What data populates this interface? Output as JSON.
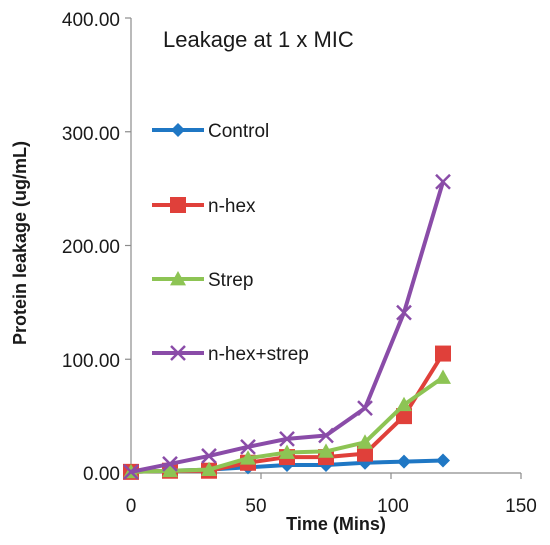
{
  "chart_data": {
    "type": "line",
    "title": "Leakage at 1 x MIC",
    "xlabel": "Time (Mins)",
    "ylabel": "Protein leakage (ug/mL)",
    "xlim": [
      0,
      150
    ],
    "ylim": [
      0,
      400
    ],
    "x_ticks": [
      "0",
      "50",
      "100",
      "150"
    ],
    "y_ticks": [
      "0.00",
      "100.00",
      "200.00",
      "300.00",
      "400.00"
    ],
    "x": [
      0,
      15,
      30,
      45,
      60,
      75,
      90,
      105,
      120
    ],
    "grid": false,
    "series": [
      {
        "name": "Control",
        "color": "#1f77c4",
        "marker": "diamond",
        "values": [
          1,
          2,
          3,
          5,
          7,
          7,
          9,
          10,
          11
        ]
      },
      {
        "name": "n-hex",
        "color": "#e0403a",
        "marker": "square",
        "values": [
          1,
          2,
          2,
          9,
          14,
          14,
          17,
          50,
          105
        ]
      },
      {
        "name": "Strep",
        "color": "#8dc454",
        "marker": "triangle",
        "values": [
          1,
          2,
          3,
          13,
          18,
          19,
          27,
          60,
          84
        ]
      },
      {
        "name": "n-hex+strep",
        "color": "#8a4ca8",
        "marker": "x",
        "values": [
          1,
          8,
          15,
          23,
          30,
          33,
          57,
          141,
          256
        ]
      }
    ]
  }
}
